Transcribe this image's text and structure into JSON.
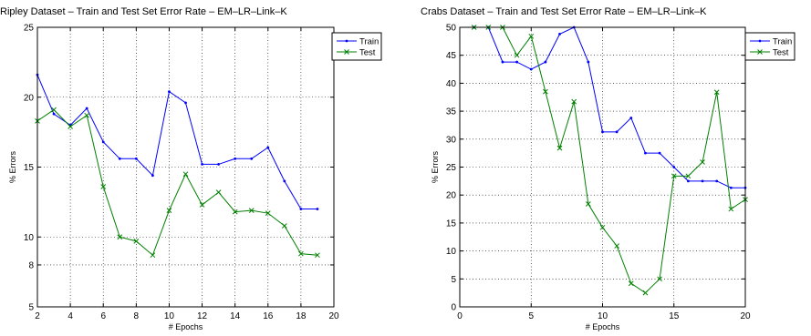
{
  "chart_data": [
    {
      "type": "line",
      "title": "Ripley Dataset – Train and Test Set Error Rate – EM–LR–Link–K",
      "xlabel": "# Epochs",
      "ylabel": "% Errors",
      "xlim": [
        2,
        20
      ],
      "ylim": [
        5,
        25
      ],
      "xticks": [
        2,
        4,
        6,
        8,
        10,
        12,
        14,
        16,
        18,
        20
      ],
      "yticks": [
        5,
        8,
        10,
        15,
        20,
        25
      ],
      "grid": true,
      "legend_position": "top-right",
      "series": [
        {
          "name": "Train",
          "color": "#0000ff",
          "marker": "dot",
          "x": [
            2,
            3,
            4,
            5,
            6,
            7,
            8,
            9,
            10,
            11,
            12,
            13,
            14,
            15,
            16,
            17,
            18,
            19
          ],
          "values": [
            21.6,
            18.8,
            18.0,
            19.2,
            16.8,
            15.6,
            15.6,
            14.4,
            20.4,
            19.6,
            15.2,
            15.2,
            15.6,
            15.6,
            16.4,
            14.0,
            12.0,
            12.0
          ]
        },
        {
          "name": "Test",
          "color": "#008000",
          "marker": "x",
          "x": [
            2,
            3,
            4,
            5,
            6,
            7,
            8,
            9,
            10,
            11,
            12,
            13,
            14,
            15,
            16,
            17,
            18,
            19
          ],
          "values": [
            18.3,
            19.1,
            17.9,
            18.7,
            13.6,
            10.0,
            9.7,
            8.7,
            11.9,
            14.5,
            12.3,
            13.2,
            11.8,
            11.9,
            11.7,
            10.8,
            8.8,
            8.7
          ]
        }
      ]
    },
    {
      "type": "line",
      "title": "Crabs Dataset – Train and Test Set Error Rate – EM–LR–Link–K",
      "xlabel": "# Epochs",
      "ylabel": "% Errors",
      "xlim": [
        0,
        20
      ],
      "ylim": [
        0,
        50
      ],
      "xticks": [
        0,
        5,
        10,
        15,
        20
      ],
      "yticks": [
        0,
        5,
        10,
        15,
        20,
        25,
        30,
        35,
        40,
        45,
        50
      ],
      "grid": true,
      "legend_position": "top-right",
      "series": [
        {
          "name": "Train",
          "color": "#0000ff",
          "marker": "dot",
          "x": [
            1,
            2,
            3,
            4,
            5,
            6,
            7,
            8,
            9,
            10,
            11,
            12,
            13,
            14,
            15,
            16,
            17,
            18,
            19,
            20
          ],
          "values": [
            50.0,
            50.0,
            43.8,
            43.8,
            42.5,
            43.8,
            48.8,
            50.0,
            43.8,
            31.3,
            31.3,
            33.8,
            27.5,
            27.5,
            25.0,
            22.5,
            22.5,
            22.5,
            21.3,
            21.3
          ]
        },
        {
          "name": "Test",
          "color": "#008000",
          "marker": "x",
          "x": [
            1,
            2,
            3,
            4,
            5,
            6,
            7,
            8,
            9,
            10,
            11,
            12,
            13,
            14,
            15,
            16,
            17,
            18,
            19,
            20
          ],
          "values": [
            50.0,
            50.0,
            50.0,
            45.0,
            48.4,
            38.5,
            28.4,
            36.7,
            18.4,
            14.2,
            10.9,
            4.2,
            2.5,
            5.0,
            23.4,
            23.4,
            25.9,
            38.4,
            17.5,
            19.2
          ]
        }
      ]
    }
  ]
}
